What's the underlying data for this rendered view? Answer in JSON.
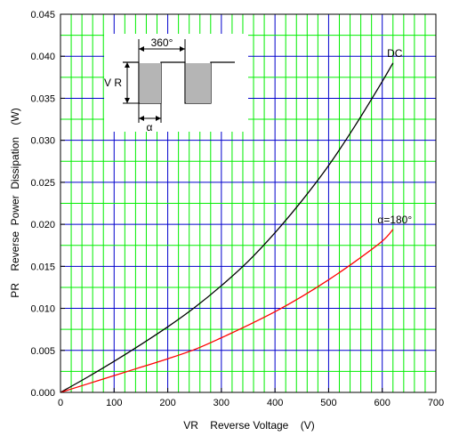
{
  "chart_data": {
    "type": "line",
    "xlabel": "VR    Reverse Voltage    (V)",
    "ylabel": "PR    Reverse  Power  Dissipation    (W)",
    "xlim": [
      0,
      700
    ],
    "ylim": [
      0,
      0.045
    ],
    "x_ticks": [
      "0",
      "100",
      "200",
      "300",
      "400",
      "500",
      "600",
      "700"
    ],
    "y_ticks": [
      "0.000",
      "0.005",
      "0.010",
      "0.015",
      "0.020",
      "0.025",
      "0.030",
      "0.035",
      "0.040",
      "0.045"
    ],
    "grid": true,
    "series": [
      {
        "name": "DC",
        "color": "#000000",
        "x": [
          0,
          50,
          100,
          150,
          200,
          250,
          300,
          350,
          400,
          450,
          500,
          550,
          600,
          620
        ],
        "y": [
          0,
          0.0018,
          0.0037,
          0.0057,
          0.0078,
          0.0101,
          0.0127,
          0.0156,
          0.019,
          0.0228,
          0.027,
          0.0318,
          0.037,
          0.0392
        ]
      },
      {
        "name": "α=180°",
        "color": "#ff0000",
        "x": [
          0,
          50,
          100,
          150,
          200,
          250,
          300,
          350,
          400,
          450,
          500,
          550,
          600,
          620
        ],
        "y": [
          0,
          0.001,
          0.002,
          0.003,
          0.004,
          0.0051,
          0.0065,
          0.008,
          0.0096,
          0.0114,
          0.0134,
          0.0156,
          0.018,
          0.0194
        ]
      }
    ],
    "inset": {
      "period_label": "360°",
      "amplitude_label": "V R",
      "angle_label": "α"
    }
  }
}
